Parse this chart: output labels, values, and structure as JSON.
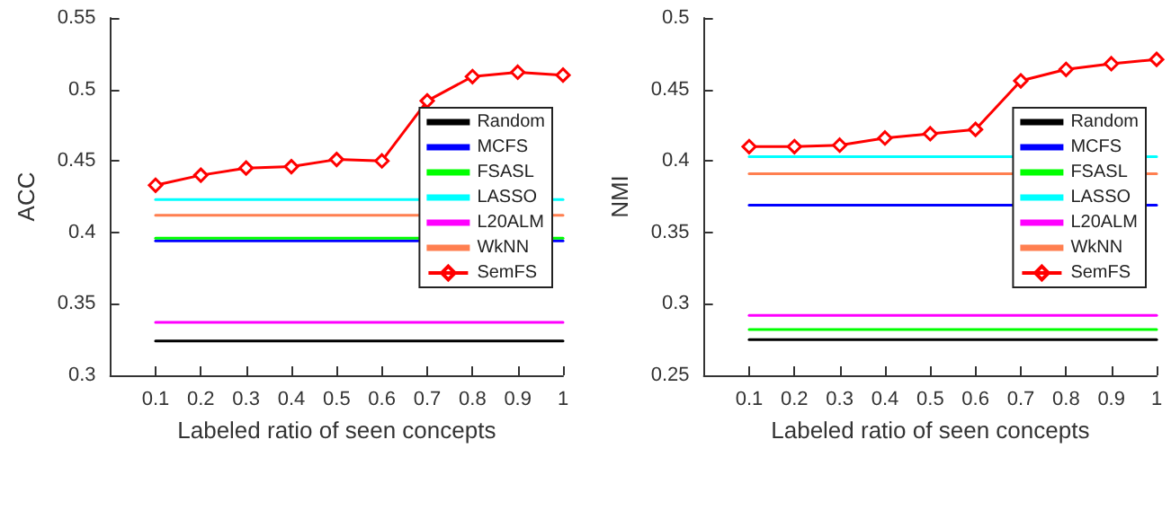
{
  "chart_data": [
    {
      "type": "line",
      "xlabel": "Labeled ratio of seen concepts",
      "ylabel": "ACC",
      "xlim": [
        0,
        1
      ],
      "xticks": [
        0.1,
        0.2,
        0.3,
        0.4,
        0.5,
        0.6,
        0.7,
        0.8,
        0.9,
        1
      ],
      "ylim": [
        0.3,
        0.55
      ],
      "yticks": [
        0.3,
        0.35,
        0.4,
        0.45,
        0.5,
        0.55
      ],
      "grid": false,
      "legend": "right",
      "series": [
        {
          "name": "Random",
          "color": "#000000",
          "marker": "none",
          "x": [
            0.1,
            1
          ],
          "values": [
            0.324,
            0.324
          ]
        },
        {
          "name": "MCFS",
          "color": "#0000ff",
          "marker": "none",
          "x": [
            0.1,
            1
          ],
          "values": [
            0.394,
            0.394
          ]
        },
        {
          "name": "FSASL",
          "color": "#00ff00",
          "marker": "none",
          "x": [
            0.1,
            1
          ],
          "values": [
            0.396,
            0.396
          ]
        },
        {
          "name": "LASSO",
          "color": "#00ffff",
          "marker": "none",
          "x": [
            0.1,
            1
          ],
          "values": [
            0.423,
            0.423
          ]
        },
        {
          "name": "L20ALM",
          "color": "#ff00ff",
          "marker": "none",
          "x": [
            0.1,
            1
          ],
          "values": [
            0.337,
            0.337
          ]
        },
        {
          "name": "WkNN",
          "color": "#ff7f50",
          "marker": "none",
          "x": [
            0.1,
            1
          ],
          "values": [
            0.412,
            0.412
          ]
        },
        {
          "name": "SemFS",
          "color": "#ff0000",
          "marker": "diamond",
          "x": [
            0.1,
            0.2,
            0.3,
            0.4,
            0.5,
            0.6,
            0.7,
            0.8,
            0.9,
            1
          ],
          "values": [
            0.433,
            0.44,
            0.445,
            0.446,
            0.451,
            0.45,
            0.492,
            0.509,
            0.512,
            0.51
          ]
        }
      ]
    },
    {
      "type": "line",
      "xlabel": "Labeled ratio of seen concepts",
      "ylabel": "NMI",
      "xlim": [
        0,
        1
      ],
      "xticks": [
        0.1,
        0.2,
        0.3,
        0.4,
        0.5,
        0.6,
        0.7,
        0.8,
        0.9,
        1
      ],
      "ylim": [
        0.25,
        0.5
      ],
      "yticks": [
        0.25,
        0.3,
        0.35,
        0.4,
        0.45,
        0.5
      ],
      "grid": false,
      "legend": "right",
      "series": [
        {
          "name": "Random",
          "color": "#000000",
          "marker": "none",
          "x": [
            0.1,
            1
          ],
          "values": [
            0.275,
            0.275
          ]
        },
        {
          "name": "MCFS",
          "color": "#0000ff",
          "marker": "none",
          "x": [
            0.1,
            1
          ],
          "values": [
            0.369,
            0.369
          ]
        },
        {
          "name": "FSASL",
          "color": "#00ff00",
          "marker": "none",
          "x": [
            0.1,
            1
          ],
          "values": [
            0.282,
            0.282
          ]
        },
        {
          "name": "LASSO",
          "color": "#00ffff",
          "marker": "none",
          "x": [
            0.1,
            1
          ],
          "values": [
            0.403,
            0.403
          ]
        },
        {
          "name": "L20ALM",
          "color": "#ff00ff",
          "marker": "none",
          "x": [
            0.1,
            1
          ],
          "values": [
            0.292,
            0.292
          ]
        },
        {
          "name": "WkNN",
          "color": "#ff7f50",
          "marker": "none",
          "x": [
            0.1,
            1
          ],
          "values": [
            0.391,
            0.391
          ]
        },
        {
          "name": "SemFS",
          "color": "#ff0000",
          "marker": "diamond",
          "x": [
            0.1,
            0.2,
            0.3,
            0.4,
            0.5,
            0.6,
            0.7,
            0.8,
            0.9,
            1
          ],
          "values": [
            0.41,
            0.41,
            0.411,
            0.416,
            0.419,
            0.422,
            0.456,
            0.464,
            0.468,
            0.471
          ]
        }
      ]
    }
  ]
}
